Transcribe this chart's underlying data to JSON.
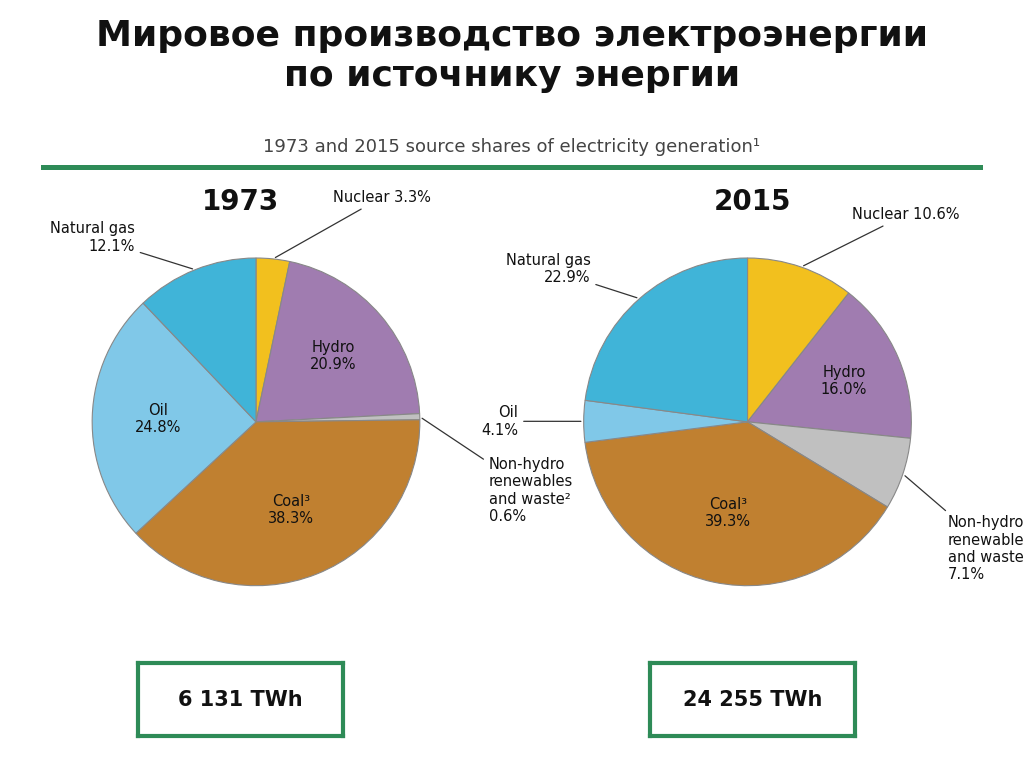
{
  "title_ru": "Мировое производство электроэнергии\nпо источнику энергии",
  "subtitle_en": "1973 and 2015 source shares of electricity generation¹",
  "year1": "1973",
  "year2": "2015",
  "twh1": "6 131 TWh",
  "twh2": "24 255 TWh",
  "pie1": {
    "values": [
      3.3,
      20.9,
      0.6,
      38.3,
      24.8,
      12.1
    ],
    "colors": [
      "#F2C01E",
      "#A07CB0",
      "#C0C0C0",
      "#C08030",
      "#80C8E8",
      "#40B4D8"
    ]
  },
  "pie2": {
    "values": [
      10.6,
      16.0,
      7.1,
      39.3,
      4.1,
      22.9
    ],
    "colors": [
      "#F2C01E",
      "#A07CB0",
      "#C0C0C0",
      "#C08030",
      "#80C8E8",
      "#40B4D8"
    ]
  },
  "bg_color": "#FFFFFF",
  "line_color": "#2E8B57",
  "box_color": "#2E8B57",
  "title_fontsize": 26,
  "subtitle_fontsize": 13,
  "year_fontsize": 20,
  "twh_fontsize": 15,
  "label_fontsize": 10.5
}
